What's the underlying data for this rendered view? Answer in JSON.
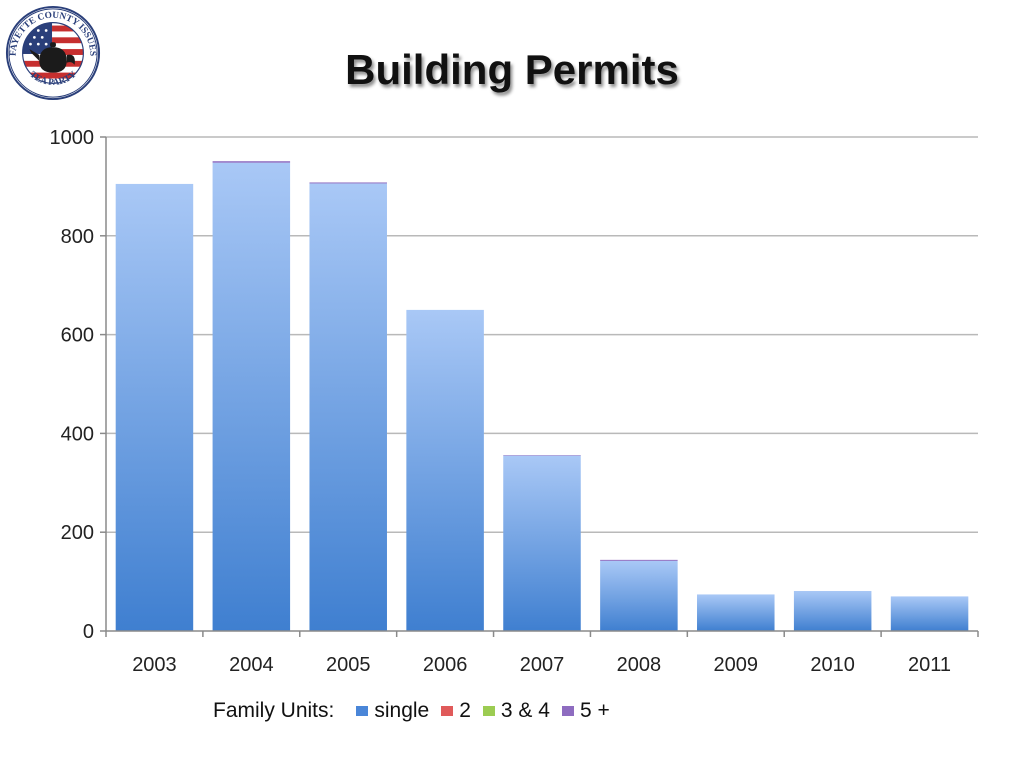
{
  "slide": {
    "title": "Building Permits",
    "logo_text": {
      "top": "FAYETTE COUNTY ISSUES",
      "bottom": "TEA PARTY"
    }
  },
  "legend": {
    "lead": "Family Units:",
    "items": [
      {
        "label": "single",
        "color": "#4a86d8"
      },
      {
        "label": "2",
        "color": "#e05a5a"
      },
      {
        "label": "3 & 4",
        "color": "#9ccc52"
      },
      {
        "label": "5 +",
        "color": "#8e6cc0"
      }
    ]
  },
  "chart_data": {
    "type": "bar",
    "stacked": true,
    "title": "Building Permits",
    "xlabel": "",
    "ylabel": "",
    "categories": [
      "2003",
      "2004",
      "2005",
      "2006",
      "2007",
      "2008",
      "2009",
      "2010",
      "2011"
    ],
    "series": [
      {
        "name": "single",
        "color": "#4a86d8",
        "values": [
          905,
          948,
          906,
          650,
          355,
          142,
          74,
          81,
          70
        ]
      },
      {
        "name": "2",
        "color": "#e05a5a",
        "values": [
          0,
          0,
          0,
          0,
          0,
          0,
          0,
          0,
          0
        ]
      },
      {
        "name": "3 & 4",
        "color": "#9ccc52",
        "values": [
          0,
          0,
          0,
          0,
          0,
          0,
          0,
          0,
          0
        ]
      },
      {
        "name": "5 +",
        "color": "#8e6cc0",
        "values": [
          0,
          3,
          2,
          0,
          1,
          2,
          0,
          0,
          0
        ]
      }
    ],
    "ylim": [
      0,
      1000
    ],
    "yticks": [
      0,
      200,
      400,
      600,
      800,
      1000
    ],
    "grid": true,
    "legend_position": "bottom"
  }
}
